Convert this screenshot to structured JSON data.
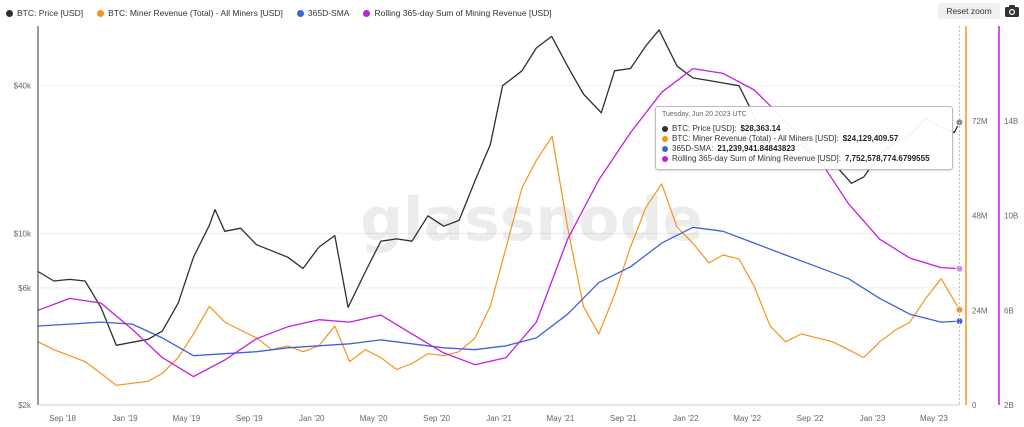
{
  "legend": [
    {
      "label": "BTC: Price [USD]",
      "color": "#2f2f2f"
    },
    {
      "label": "BTC: Miner Revenue (Total) - All Miners [USD]",
      "color": "#f7931a"
    },
    {
      "label": "365D-SMA",
      "color": "#3f63d6"
    },
    {
      "label": "Rolling 365-day Sum of Mining Revenue [USD]",
      "color": "#c21fe0"
    }
  ],
  "toolbar": {
    "reset_label": "Reset zoom",
    "camera_icon": "camera-icon"
  },
  "watermark": "glassnode",
  "tooltip": {
    "date": "Tuesday, Jun 20 2023 UTC",
    "rows": [
      {
        "label": "BTC: Price [USD]: ",
        "value": "$28,363.14",
        "color": "#2f2f2f"
      },
      {
        "label": "BTC: Miner Revenue (Total) - All Miners [USD]: ",
        "value": "$24,129,409.57",
        "color": "#f7931a"
      },
      {
        "label": "365D-SMA: ",
        "value": "21,239,941.84843823",
        "color": "#3f63d6"
      },
      {
        "label": "Rolling 365-day Sum of Mining Revenue [USD]: ",
        "value": "7,752,578,774.6799555",
        "color": "#c21fe0"
      }
    ]
  },
  "chart_data": {
    "type": "line",
    "scale": "log price axis",
    "x_ticks": [
      "Sep '18",
      "Jan '19",
      "May '19",
      "Sep '19",
      "Jan '20",
      "May '20",
      "Sep '20",
      "Jan '21",
      "May '21",
      "Sep '21",
      "Jan '22",
      "May '22",
      "Sep '22",
      "Jan '23",
      "May '23"
    ],
    "price_axis": {
      "ticks": [
        "$2k",
        "$6k",
        "$10k",
        "$40k"
      ],
      "tick_values": [
        2000,
        6000,
        10000,
        40000
      ],
      "range": [
        2000,
        70000
      ]
    },
    "revenue_axis": {
      "ticks": [
        "0",
        "24M",
        "48M",
        "72M"
      ],
      "tick_values": [
        0,
        24000000,
        48000000,
        72000000
      ],
      "range": [
        0,
        96000000
      ]
    },
    "rolling_axis": {
      "ticks": [
        "2B",
        "6B",
        "10B",
        "14B"
      ],
      "tick_values": [
        2000000000,
        6000000000,
        10000000000,
        14000000000
      ],
      "range": [
        2000000000,
        18000000000
      ]
    },
    "series": [
      {
        "name": "BTC: Price [USD]",
        "axis": "price",
        "color": "#2f2f2f",
        "x": [
          "2018-07-15",
          "2018-08-15",
          "2018-09-15",
          "2018-10-15",
          "2018-11-15",
          "2018-12-15",
          "2019-01-15",
          "2019-02-15",
          "2019-03-15",
          "2019-04-15",
          "2019-05-15",
          "2019-06-15",
          "2019-06-26",
          "2019-07-15",
          "2019-08-15",
          "2019-09-15",
          "2019-10-15",
          "2019-11-15",
          "2019-12-15",
          "2020-01-15",
          "2020-02-15",
          "2020-03-12",
          "2020-04-15",
          "2020-05-15",
          "2020-06-15",
          "2020-07-15",
          "2020-08-15",
          "2020-09-15",
          "2020-10-15",
          "2020-11-15",
          "2020-12-15",
          "2021-01-08",
          "2021-02-15",
          "2021-03-15",
          "2021-04-14",
          "2021-05-15",
          "2021-06-15",
          "2021-07-20",
          "2021-08-15",
          "2021-09-15",
          "2021-10-15",
          "2021-11-10",
          "2021-12-15",
          "2022-01-15",
          "2022-02-15",
          "2022-03-15",
          "2022-04-15",
          "2022-05-15",
          "2022-06-18",
          "2022-07-15",
          "2022-08-15",
          "2022-09-15",
          "2022-10-15",
          "2022-11-21",
          "2022-12-15",
          "2023-01-15",
          "2023-02-15",
          "2023-03-15",
          "2023-04-15",
          "2023-05-15",
          "2023-06-10",
          "2023-06-20"
        ],
        "values": [
          7000,
          6400,
          6500,
          6400,
          5000,
          3500,
          3600,
          3700,
          4000,
          5200,
          8000,
          10800,
          12500,
          10200,
          10500,
          9000,
          8500,
          8000,
          7200,
          8800,
          9800,
          5000,
          7000,
          9300,
          9500,
          9300,
          11800,
          10700,
          11300,
          16400,
          23000,
          40000,
          46000,
          57000,
          63500,
          48000,
          37000,
          31000,
          46000,
          47000,
          58000,
          67500,
          48000,
          43000,
          42000,
          41000,
          40000,
          30000,
          19000,
          22000,
          23000,
          20000,
          19500,
          16000,
          17000,
          21000,
          23500,
          25000,
          29500,
          27000,
          25800,
          28363
        ]
      },
      {
        "name": "BTC: Miner Revenue (Total) - All Miners [USD]",
        "axis": "revenue",
        "color": "#f7931a",
        "x": [
          "2018-07-15",
          "2018-08-15",
          "2018-09-15",
          "2018-10-15",
          "2018-11-15",
          "2018-12-15",
          "2019-01-15",
          "2019-02-15",
          "2019-03-15",
          "2019-04-15",
          "2019-05-15",
          "2019-06-15",
          "2019-07-15",
          "2019-08-15",
          "2019-09-15",
          "2019-10-15",
          "2019-11-15",
          "2019-12-15",
          "2020-01-15",
          "2020-02-15",
          "2020-03-15",
          "2020-04-15",
          "2020-05-15",
          "2020-06-15",
          "2020-07-15",
          "2020-08-15",
          "2020-09-15",
          "2020-10-15",
          "2020-11-15",
          "2020-12-15",
          "2021-01-15",
          "2021-02-15",
          "2021-03-15",
          "2021-04-15",
          "2021-05-15",
          "2021-06-15",
          "2021-07-15",
          "2021-08-15",
          "2021-09-15",
          "2021-10-15",
          "2021-11-15",
          "2021-12-15",
          "2022-01-15",
          "2022-02-15",
          "2022-03-15",
          "2022-04-15",
          "2022-05-15",
          "2022-06-15",
          "2022-07-15",
          "2022-08-15",
          "2022-09-15",
          "2022-10-15",
          "2022-11-15",
          "2022-12-15",
          "2023-01-15",
          "2023-02-15",
          "2023-03-15",
          "2023-04-15",
          "2023-05-15",
          "2023-06-20"
        ],
        "values": [
          16000000,
          14000000,
          12500000,
          11000000,
          8000000,
          5000000,
          5500000,
          6000000,
          8000000,
          12000000,
          18000000,
          25000000,
          21000000,
          19000000,
          17000000,
          14000000,
          15000000,
          13500000,
          15000000,
          20000000,
          11000000,
          14000000,
          12000000,
          9000000,
          10500000,
          13000000,
          12500000,
          13500000,
          17000000,
          25000000,
          40000000,
          55000000,
          62000000,
          68000000,
          45000000,
          25000000,
          18000000,
          28000000,
          40000000,
          50000000,
          56000000,
          45000000,
          41000000,
          36000000,
          38000000,
          37000000,
          30000000,
          20000000,
          16000000,
          18000000,
          17000000,
          16000000,
          14000000,
          12000000,
          16000000,
          19000000,
          21000000,
          27000000,
          32000000,
          24129409.57
        ]
      },
      {
        "name": "365D-SMA",
        "axis": "revenue",
        "color": "#3f63d6",
        "x": [
          "2018-07-15",
          "2018-09-15",
          "2018-11-15",
          "2019-01-15",
          "2019-03-15",
          "2019-05-15",
          "2019-07-15",
          "2019-09-15",
          "2019-11-15",
          "2020-01-15",
          "2020-03-15",
          "2020-05-15",
          "2020-07-15",
          "2020-09-15",
          "2020-11-15",
          "2021-01-15",
          "2021-03-15",
          "2021-05-15",
          "2021-07-15",
          "2021-09-15",
          "2021-11-15",
          "2022-01-15",
          "2022-03-15",
          "2022-05-15",
          "2022-07-15",
          "2022-09-15",
          "2022-11-15",
          "2023-01-15",
          "2023-03-15",
          "2023-05-15",
          "2023-06-20"
        ],
        "values": [
          20000000,
          20500000,
          21000000,
          20500000,
          17000000,
          12500000,
          13000000,
          13500000,
          14500000,
          15000000,
          15500000,
          16500000,
          15500000,
          14500000,
          14000000,
          15000000,
          17000000,
          23000000,
          31000000,
          35000000,
          41000000,
          45000000,
          44000000,
          41000000,
          38000000,
          35000000,
          32000000,
          27000000,
          23000000,
          21000000,
          21239941.85
        ]
      },
      {
        "name": "Rolling 365-day Sum of Mining Revenue [USD]",
        "axis": "rolling",
        "color": "#c21fe0",
        "x": [
          "2018-07-15",
          "2018-09-15",
          "2018-11-15",
          "2019-01-15",
          "2019-03-15",
          "2019-05-15",
          "2019-07-15",
          "2019-09-15",
          "2019-11-15",
          "2020-01-15",
          "2020-03-15",
          "2020-05-15",
          "2020-07-15",
          "2020-09-15",
          "2020-11-15",
          "2021-01-15",
          "2021-03-15",
          "2021-05-15",
          "2021-07-15",
          "2021-09-15",
          "2021-11-15",
          "2022-01-15",
          "2022-03-15",
          "2022-05-15",
          "2022-07-15",
          "2022-09-15",
          "2022-11-15",
          "2023-01-15",
          "2023-03-15",
          "2023-05-15",
          "2023-06-20"
        ],
        "values": [
          6000000000,
          6500000000,
          6300000000,
          5200000000,
          4000000000,
          3200000000,
          3900000000,
          4800000000,
          5300000000,
          5600000000,
          5500000000,
          5800000000,
          5000000000,
          4200000000,
          3700000000,
          4000000000,
          5500000000,
          9000000000,
          11500000000,
          13500000000,
          15200000000,
          16200000000,
          16000000000,
          15300000000,
          14000000000,
          12500000000,
          10500000000,
          9000000000,
          8200000000,
          7800000000,
          7752578774.68
        ]
      }
    ]
  }
}
